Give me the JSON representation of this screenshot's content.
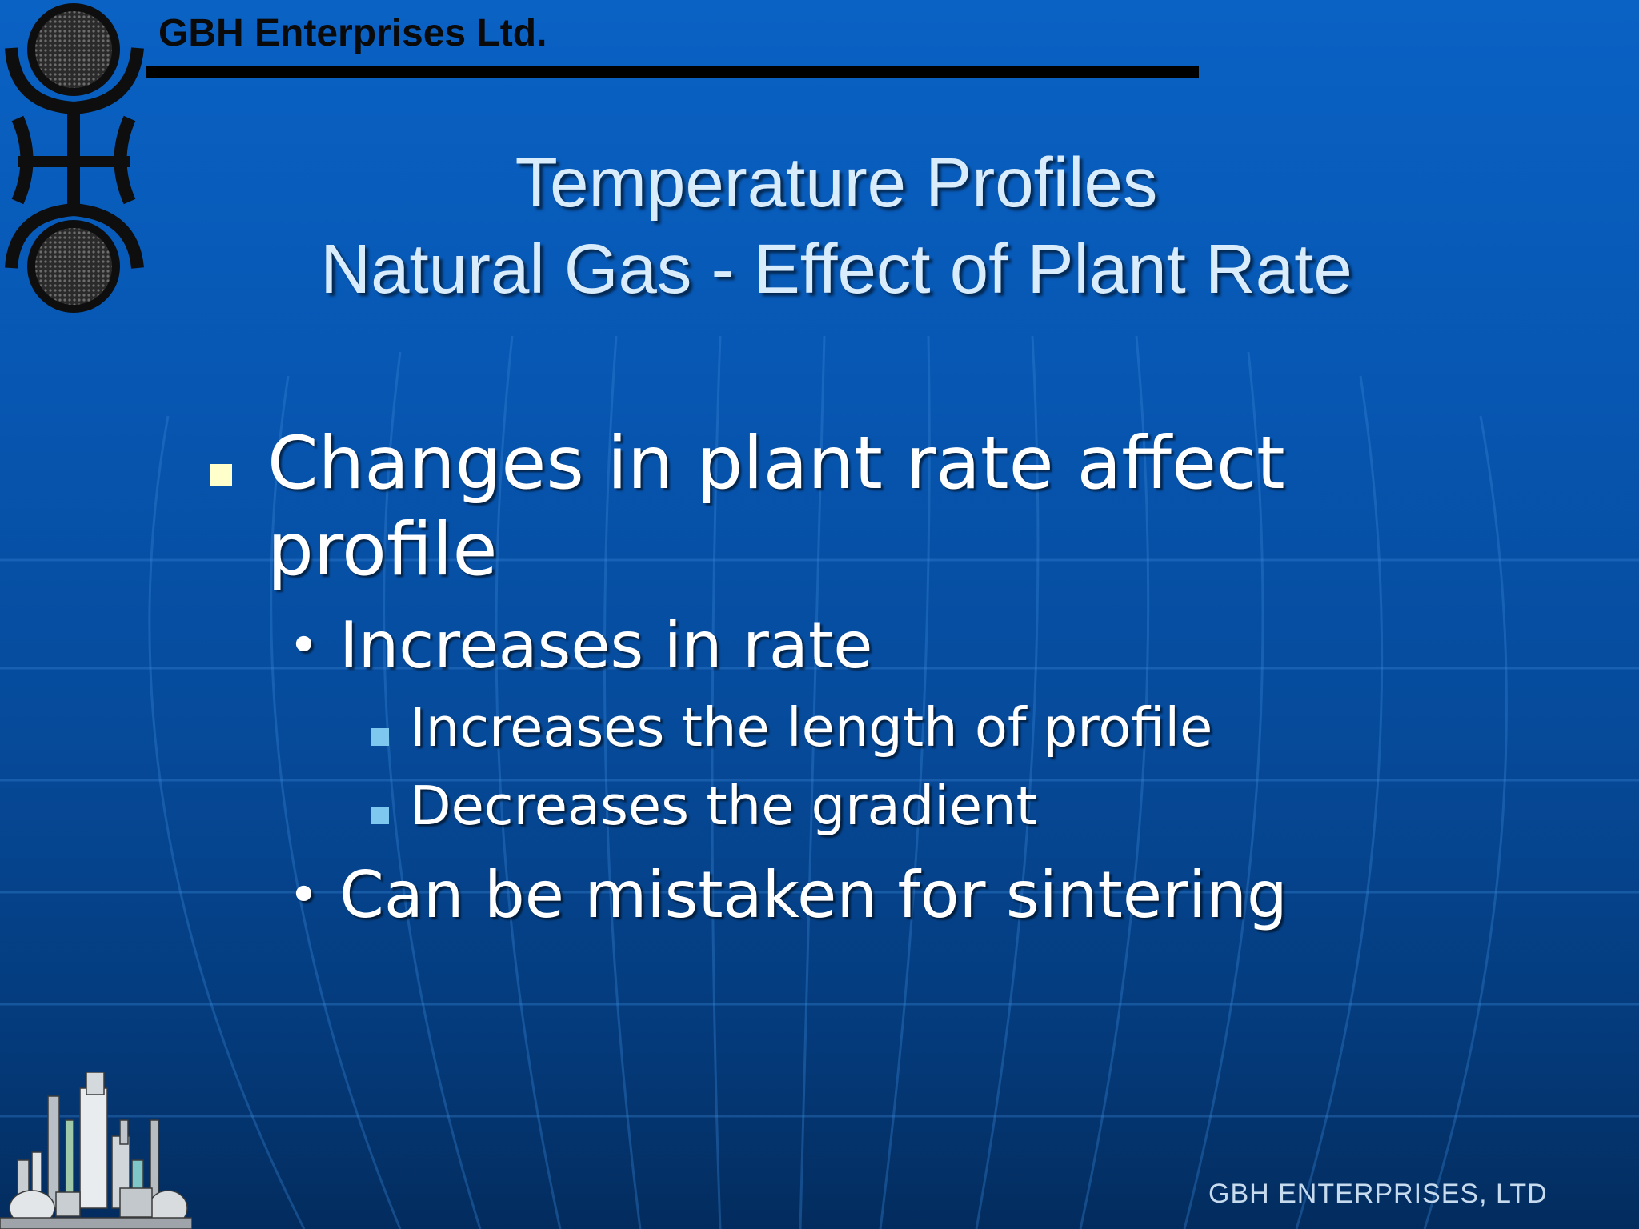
{
  "header": {
    "company_name": "GBH Enterprises Ltd."
  },
  "slide": {
    "title_line1": "Temperature Profiles",
    "title_line2": "Natural Gas - Effect of Plant Rate",
    "bullets": {
      "main": "Changes in plant rate affect",
      "main_cont": "profile",
      "sub1": "Increases in rate",
      "sub1_items": [
        "Increases the length of profile",
        "Decreases the gradient"
      ],
      "sub2": "Can be mistaken for sintering"
    }
  },
  "footer": {
    "text": "GBH ENTERPRISES, LTD"
  },
  "colors": {
    "background": "#0757b3",
    "title_text": "#d9ecfb",
    "bullet_l1": "#ffffcc",
    "bullet_l3": "#7ec8f0"
  },
  "icons": {
    "logo": "gbh-logo-icon",
    "illustration": "industrial-plant-icon"
  }
}
